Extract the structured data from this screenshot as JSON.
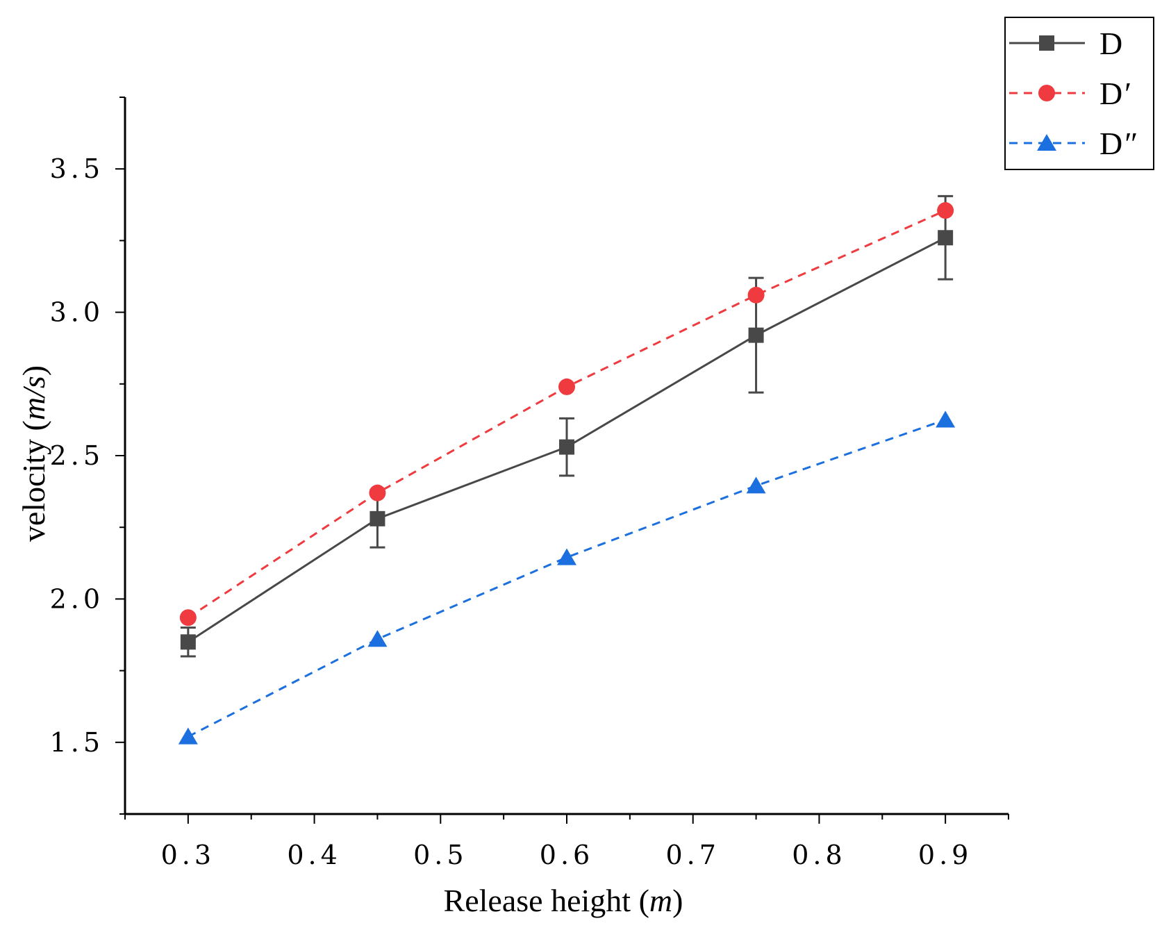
{
  "chart_data": {
    "type": "line",
    "xlabel": "Release height",
    "xlabel_unit": "m",
    "ylabel": "velocity",
    "ylabel_unit": "m/s",
    "xlim": [
      0.25,
      0.95
    ],
    "ylim": [
      1.25,
      3.75
    ],
    "x_ticks": [
      0.3,
      0.4,
      0.5,
      0.6,
      0.7,
      0.8,
      0.9
    ],
    "x_tick_labels": [
      "0.3",
      "0.4",
      "0.5",
      "0.6",
      "0.7",
      "0.8",
      "0.9"
    ],
    "y_ticks": [
      1.5,
      2.0,
      2.5,
      3.0,
      3.5
    ],
    "y_tick_labels": [
      "1.5",
      "2.0",
      "2.5",
      "3.0",
      "3.5"
    ],
    "grid": false,
    "legend_position": "top-right",
    "series": [
      {
        "name": "D",
        "label_base": "D",
        "label_mark": "",
        "marker": "square",
        "line_style": "solid",
        "color": "#484848",
        "x": [
          0.3,
          0.45,
          0.6,
          0.75,
          0.9
        ],
        "values": [
          1.85,
          2.28,
          2.53,
          2.92,
          3.26
        ],
        "error": [
          0.05,
          0.1,
          0.1,
          0.2,
          0.145
        ]
      },
      {
        "name": "D′",
        "label_base": "D",
        "label_mark": "′",
        "marker": "circle",
        "line_style": "dashed",
        "color": "#ef3b3f",
        "x": [
          0.3,
          0.45,
          0.6,
          0.75,
          0.9
        ],
        "values": [
          1.935,
          2.37,
          2.74,
          3.06,
          3.355
        ]
      },
      {
        "name": "D″",
        "label_base": "D",
        "label_mark": "″",
        "marker": "triangle",
        "line_style": "dashed",
        "color": "#1c6fde",
        "x": [
          0.3,
          0.45,
          0.6,
          0.75,
          0.9
        ],
        "values": [
          1.52,
          1.86,
          2.145,
          2.395,
          2.625
        ]
      }
    ]
  }
}
